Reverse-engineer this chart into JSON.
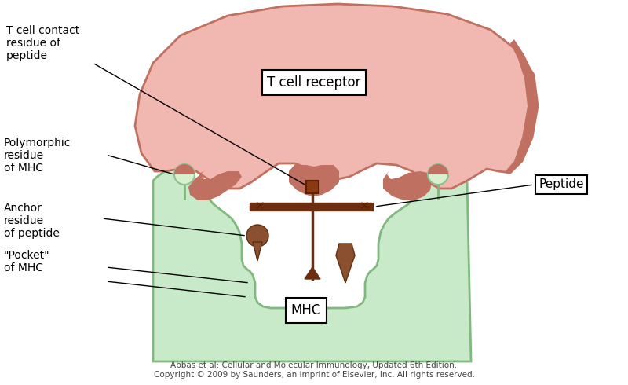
{
  "bg_color": "#ffffff",
  "tcr_fill": "#f0b8b0",
  "tcr_edge": "#c07060",
  "tcr_dark": "#c07060",
  "mhc_fill": "#c8eac8",
  "mhc_edge": "#80b880",
  "peptide_bar_color": "#6B2E10",
  "anchor_color": "#8B5030",
  "annotation_line_color": "#000000",
  "poly_circle_fill": "#d8f0d0",
  "poly_circle_edge": "#90c090",
  "labels": {
    "tcr": "T cell receptor",
    "mhc": "MHC",
    "peptide": "Peptide",
    "t_cell_contact": "T cell contact\nresidue of\npeptide",
    "polymorphic": "Polymorphic\nresidue\nof MHC",
    "anchor": "Anchor\nresidue\nof peptide",
    "pocket": "\"Pocket\"\nof MHC"
  },
  "footer_line1": "Abbas et al: Cellular and Molecular Immunology, Updated 6th Edition.",
  "footer_line2": "Copyright © 2009 by Saunders, an imprint of Elsevier, Inc. All rights reserved."
}
